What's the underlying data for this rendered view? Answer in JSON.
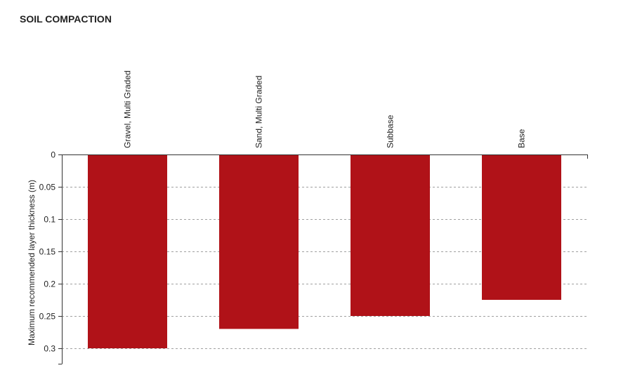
{
  "title": "SOIL COMPACTION",
  "chart_data": {
    "type": "bar",
    "orientation": "vertical",
    "y_axis_inverted": true,
    "title": "SOIL COMPACTION",
    "xlabel": "",
    "ylabel": "Maximum recommended layer thickness (m)",
    "categories": [
      "Gravel, Multi Graded",
      "Sand, Multi Graded",
      "Subbase",
      "Base"
    ],
    "values": [
      0.3,
      0.27,
      0.25,
      0.225
    ],
    "ylim": [
      0,
      0.33
    ],
    "yticks": [
      0,
      0.05,
      0.1,
      0.15,
      0.2,
      0.25,
      0.3
    ],
    "ytick_labels": [
      "0",
      "0.05",
      "0.1",
      "0.15",
      "0.2",
      "0.25",
      "0.3"
    ],
    "category_axis_position": "top",
    "grid": true,
    "bar_color": "#b01218",
    "grid_color": "#a0a0a0"
  }
}
